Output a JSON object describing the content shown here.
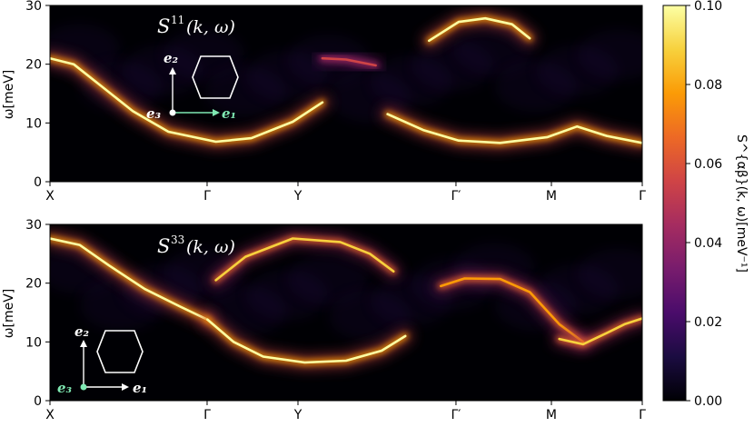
{
  "chart_data": [
    {
      "type": "heatmap",
      "panel": "top",
      "annotation": {
        "symbol": "S",
        "superscript": "11",
        "args": "(k, ω)"
      },
      "ylabel": "ω[meV]",
      "ylim": [
        0,
        30
      ],
      "yticks": [
        "0",
        "10",
        "20",
        "30"
      ],
      "xticks": [
        "X",
        "Γ",
        "Y",
        "Γ′",
        "M",
        "Γ"
      ],
      "inset": {
        "e1": "e₁",
        "e2": "e₂",
        "e3": "e₃",
        "highlight": "e1"
      },
      "bands": [
        {
          "name": "lower",
          "points": [
            [
              0,
              21
            ],
            [
              0.04,
              20
            ],
            [
              0.09,
              16
            ],
            [
              0.14,
              12
            ],
            [
              0.2,
              8.5
            ],
            [
              0.28,
              6.8
            ],
            [
              0.34,
              7.4
            ],
            [
              0.41,
              10.2
            ],
            [
              0.46,
              13.5
            ]
          ],
          "intensity": 1.0
        },
        {
          "name": "lower-2",
          "points": [
            [
              0.57,
              11.5
            ],
            [
              0.63,
              8.8
            ],
            [
              0.69,
              7
            ],
            [
              0.76,
              6.6
            ],
            [
              0.84,
              7.6
            ],
            [
              0.89,
              9.4
            ],
            [
              0.94,
              7.8
            ],
            [
              1.0,
              6.6
            ]
          ],
          "intensity": 1.0
        },
        {
          "name": "upper-dome",
          "points": [
            [
              0.64,
              24
            ],
            [
              0.69,
              27.2
            ],
            [
              0.735,
              27.8
            ],
            [
              0.78,
              26.8
            ],
            [
              0.81,
              24.4
            ]
          ],
          "intensity": 0.95
        },
        {
          "name": "Y-flat",
          "points": [
            [
              0.46,
              21
            ],
            [
              0.5,
              20.8
            ],
            [
              0.55,
              19.8
            ]
          ],
          "intensity": 0.55
        }
      ]
    },
    {
      "type": "heatmap",
      "panel": "bottom",
      "annotation": {
        "symbol": "S",
        "superscript": "33",
        "args": "(k, ω)"
      },
      "ylabel": "ω[meV]",
      "ylim": [
        0,
        30
      ],
      "yticks": [
        "0",
        "10",
        "20",
        "30"
      ],
      "xticks": [
        "X",
        "Γ",
        "Y",
        "Γ′",
        "M",
        "Γ"
      ],
      "inset": {
        "e1": "e₁",
        "e2": "e₂",
        "e3": "e₃",
        "highlight": "e3"
      },
      "bands": [
        {
          "name": "top-left",
          "points": [
            [
              0,
              27.6
            ],
            [
              0.05,
              26.5
            ],
            [
              0.1,
              23
            ],
            [
              0.16,
              19
            ],
            [
              0.22,
              16
            ],
            [
              0.266,
              13.8
            ]
          ],
          "intensity": 1.0
        },
        {
          "name": "Y-dome-lower",
          "points": [
            [
              0.266,
              13.8
            ],
            [
              0.31,
              10
            ],
            [
              0.36,
              7.5
            ],
            [
              0.43,
              6.5
            ],
            [
              0.5,
              6.8
            ],
            [
              0.56,
              8.5
            ],
            [
              0.6,
              11
            ]
          ],
          "intensity": 1.0
        },
        {
          "name": "Y-dome-upper",
          "points": [
            [
              0.28,
              20.5
            ],
            [
              0.33,
              24.5
            ],
            [
              0.41,
              27.6
            ],
            [
              0.49,
              27
            ],
            [
              0.54,
              25
            ],
            [
              0.58,
              22
            ]
          ],
          "intensity": 0.85
        },
        {
          "name": "Gp-arc",
          "points": [
            [
              0.66,
              19.5
            ],
            [
              0.7,
              20.8
            ],
            [
              0.76,
              20.7
            ],
            [
              0.81,
              18.5
            ],
            [
              0.86,
              13
            ],
            [
              0.9,
              10
            ]
          ],
          "intensity": 0.8
        },
        {
          "name": "M-dip",
          "points": [
            [
              0.86,
              10.5
            ],
            [
              0.9,
              9.6
            ],
            [
              0.94,
              11.5
            ],
            [
              0.97,
              13
            ],
            [
              1.0,
              14
            ]
          ],
          "intensity": 0.9
        }
      ]
    }
  ],
  "colorbar": {
    "label": "S^{αβ}(k, ω)[meV⁻¹]",
    "ticks": [
      "0.00",
      "0.02",
      "0.04",
      "0.06",
      "0.08",
      "0.10"
    ],
    "range": [
      0,
      0.1
    ],
    "colormap": [
      "#000004",
      "#1b0c41",
      "#4a0c6b",
      "#781c6d",
      "#a52c60",
      "#cf4446",
      "#ed6925",
      "#fb9b06",
      "#f7d13d",
      "#fcffa4"
    ]
  }
}
